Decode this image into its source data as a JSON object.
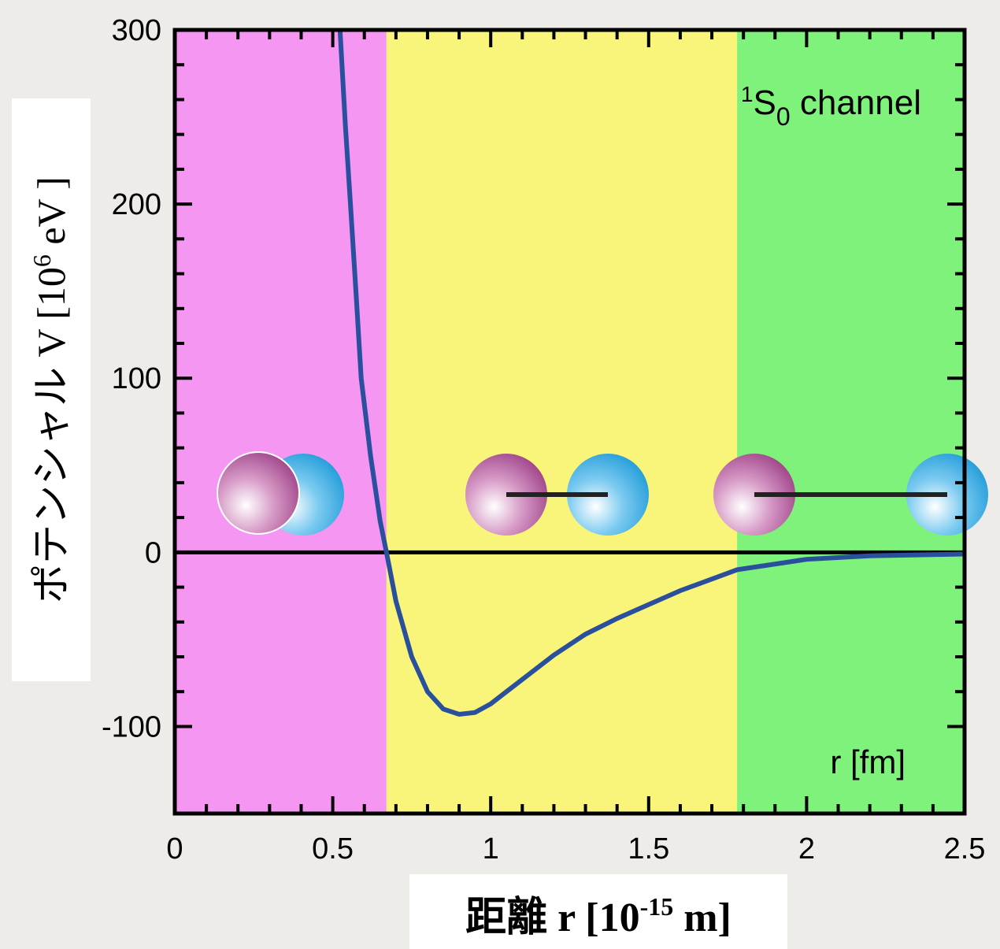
{
  "chart_data": {
    "type": "line",
    "annotation": {
      "sup": "1",
      "main": "S",
      "sub": "0",
      "rest": " channel"
    },
    "axis_annotation": "r [fm]",
    "ylabel": {
      "main": "ポテンシャル V [10",
      "sup": "6",
      "rest": " eV ]"
    },
    "xlabel": {
      "main": "距離 r [10",
      "sup": "-15",
      "rest": " m]"
    },
    "x": [
      0.523,
      0.54,
      0.556,
      0.575,
      0.59,
      0.62,
      0.65,
      0.67,
      0.7,
      0.75,
      0.8,
      0.85,
      0.9,
      0.95,
      1.0,
      1.1,
      1.2,
      1.3,
      1.4,
      1.5,
      1.6,
      1.78,
      2.0,
      2.2,
      2.5
    ],
    "values": [
      300,
      245,
      200,
      145,
      100,
      55,
      18,
      0,
      -28,
      -60,
      -80,
      -90,
      -93,
      -92,
      -87,
      -73,
      -59,
      -47,
      -38,
      -30,
      -22,
      -10,
      -4,
      -2,
      -1
    ],
    "color": "#2a4f9c",
    "regions": [
      {
        "from": 0,
        "to": 0.67,
        "color": "#f596f2"
      },
      {
        "from": 0.67,
        "to": 1.78,
        "color": "#f8f57a"
      },
      {
        "from": 1.78,
        "to": 2.5,
        "color": "#7ef27a"
      }
    ],
    "xlim": [
      0,
      2.5
    ],
    "xticks": [
      0,
      0.5,
      1,
      1.5,
      2,
      2.5
    ],
    "ylim": [
      -150,
      300
    ],
    "yticks": [
      300,
      200,
      100,
      0,
      -100
    ]
  }
}
